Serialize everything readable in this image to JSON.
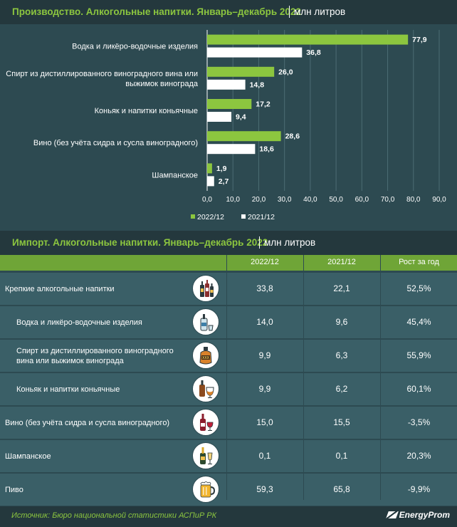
{
  "production": {
    "title": "Производство. Алкогольные напитки. Январь–декабрь 2022",
    "unit": "млн литров"
  },
  "chart_data": {
    "type": "bar",
    "orientation": "horizontal",
    "categories": [
      [
        "Водка и ликёро-водочные изделия"
      ],
      [
        "Спирт из дистиллированного виноградного вина или",
        "выжимок винограда"
      ],
      [
        "Коньяк и напитки коньячные"
      ],
      [
        "Вино (без учёта сидра и сусла виноградного)"
      ],
      [
        "Шампанское"
      ]
    ],
    "series": [
      {
        "name": "2022/12",
        "values": [
          77.9,
          26.0,
          17.2,
          28.6,
          1.9
        ],
        "labels": [
          "77,9",
          "26,0",
          "17,2",
          "28,6",
          "1,9"
        ],
        "color": "#8cc63f"
      },
      {
        "name": "2021/12",
        "values": [
          36.8,
          14.8,
          9.4,
          18.6,
          2.7
        ],
        "labels": [
          "36,8",
          "14,8",
          "9,4",
          "18,6",
          "2,7"
        ],
        "color": "#ffffff"
      }
    ],
    "xlim": [
      0,
      90
    ],
    "xticks": [
      "0,0",
      "10,0",
      "20,0",
      "30,0",
      "40,0",
      "50,0",
      "60,0",
      "70,0",
      "80,0",
      "90,0"
    ],
    "grid": true,
    "legend_position": "bottom"
  },
  "import": {
    "title": "Импорт. Алкогольные напитки. Январь–декабрь 2022",
    "unit": "млн литров",
    "columns": [
      "2022/12",
      "2021/12",
      "Рост за год"
    ],
    "rows": [
      {
        "label": "Крепкие алкогольные напитки",
        "icon": "spirits-bottles-icon",
        "v2022": "33,8",
        "v2021": "22,1",
        "growth": "52,5%"
      },
      {
        "label": "Водка и ликёро-водочные изделия",
        "icon": "vodka-bottle-icon",
        "v2022": "14,0",
        "v2021": "9,6",
        "growth": "45,4%"
      },
      {
        "label": "Спирт из дистиллированного виноградного вина или выжимок винограда",
        "icon": "xxx-jug-icon",
        "v2022": "9,9",
        "v2021": "6,3",
        "growth": "55,9%"
      },
      {
        "label": "Коньяк и напитки коньячные",
        "icon": "cognac-glass-icon",
        "v2022": "9,9",
        "v2021": "6,2",
        "growth": "60,1%"
      },
      {
        "label": "Вино (без учёта сидра и сусла виноградного)",
        "icon": "wine-bottle-icon",
        "v2022": "15,0",
        "v2021": "15,5",
        "growth": "-3,5%"
      },
      {
        "label": "Шампанское",
        "icon": "champagne-icon",
        "v2022": "0,1",
        "v2021": "0,1",
        "growth": "20,3%"
      },
      {
        "label": "Пиво",
        "icon": "beer-mug-icon",
        "v2022": "59,3",
        "v2021": "65,8",
        "growth": "-9,9%"
      }
    ]
  },
  "footer": {
    "source": "Источник: Бюро национальной статистики АСПиР РК",
    "brand": "EnergyProm"
  }
}
